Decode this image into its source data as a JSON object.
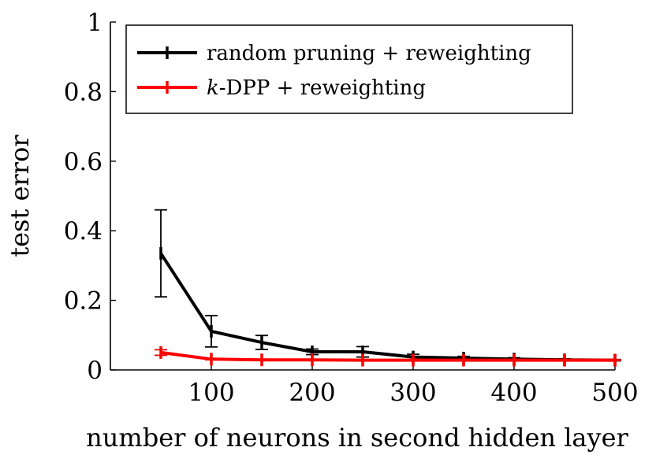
{
  "chart_data": {
    "type": "line",
    "title": "",
    "xlabel": "number of neurons in second hidden layer",
    "ylabel": "test error",
    "xlim": [
      0,
      500
    ],
    "ylim": [
      0,
      1
    ],
    "xticks": [
      100,
      200,
      300,
      400,
      500
    ],
    "xtick_labels": [
      "100",
      "200",
      "300",
      "400",
      "500"
    ],
    "yticks": [
      0,
      0.2,
      0.4,
      0.6,
      0.8,
      1
    ],
    "ytick_labels": [
      "0",
      "0.2",
      "0.4",
      "0.6",
      "0.8",
      "1"
    ],
    "grid": false,
    "legend_position": "top-left",
    "series": [
      {
        "name": "random pruning + reweighting",
        "legend_name_math": "",
        "legend_name_rest": "random pruning + reweighting",
        "color": "#000000",
        "x": [
          50,
          100,
          150,
          200,
          250,
          300,
          350,
          400,
          450,
          500
        ],
        "y": [
          0.335,
          0.111,
          0.079,
          0.052,
          0.052,
          0.037,
          0.034,
          0.031,
          0.029,
          0.028
        ],
        "err": [
          0.125,
          0.045,
          0.02,
          0.008,
          0.015,
          0.008,
          0.005,
          0.004,
          0.003,
          0.002
        ]
      },
      {
        "name": "k-DPP + reweighting",
        "legend_name_math": "k",
        "legend_name_rest": "-DPP + reweighting",
        "color": "#ff0000",
        "x": [
          50,
          100,
          150,
          200,
          250,
          300,
          350,
          400,
          450,
          500
        ],
        "y": [
          0.05,
          0.031,
          0.029,
          0.029,
          0.028,
          0.028,
          0.028,
          0.028,
          0.028,
          0.028
        ],
        "err": [
          0.008,
          0.002,
          0.002,
          0.001,
          0.001,
          0.001,
          0.001,
          0.001,
          0.001,
          0.001
        ]
      }
    ]
  }
}
